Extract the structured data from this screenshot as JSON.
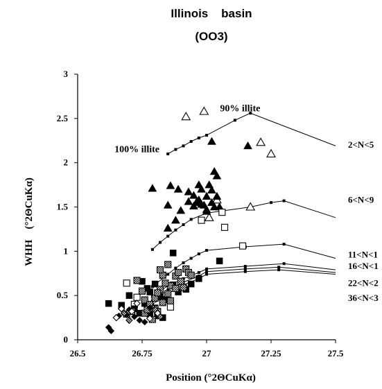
{
  "chart_data": {
    "type": "scatter",
    "title": "Illinois    basin",
    "subtitle": "(OO3)",
    "xlabel": "Position (°2ΘCuKα)",
    "ylabel": "WHH    (°2ΘCuKα)",
    "xlim": [
      26.5,
      27.5
    ],
    "ylim": [
      0,
      3
    ],
    "xticks": [
      26.5,
      26.75,
      27,
      27.25,
      27.5
    ],
    "xtick_labels": [
      "26.5",
      "26.75",
      "27",
      "27.25",
      "27.5"
    ],
    "yticks": [
      0,
      0.5,
      1,
      1.5,
      2,
      2.5,
      3
    ],
    "ytick_labels": [
      "0",
      "0.5",
      "1",
      "1.5",
      "2",
      "2.5",
      "3"
    ],
    "grid": false,
    "annotations": [
      {
        "text": "100% illite",
        "x": 26.73,
        "y": 2.12
      },
      {
        "text": "90% illite",
        "x": 27.13,
        "y": 2.58
      }
    ],
    "curves": [
      {
        "name": "2<N<5",
        "label_y": 2.2,
        "points": [
          [
            26.85,
            2.1
          ],
          [
            26.88,
            2.15
          ],
          [
            26.91,
            2.19
          ],
          [
            26.94,
            2.24
          ],
          [
            26.97,
            2.28
          ],
          [
            27.0,
            2.31
          ],
          [
            27.11,
            2.48
          ],
          [
            27.17,
            2.56
          ],
          [
            27.5,
            2.19
          ]
        ]
      },
      {
        "name": "6<N<9",
        "label_y": 1.58,
        "points": [
          [
            26.79,
            1.02
          ],
          [
            26.82,
            1.1
          ],
          [
            26.85,
            1.17
          ],
          [
            26.88,
            1.24
          ],
          [
            26.91,
            1.3
          ],
          [
            26.94,
            1.36
          ],
          [
            27.0,
            1.43
          ],
          [
            27.17,
            1.5
          ],
          [
            27.25,
            1.55
          ],
          [
            27.3,
            1.57
          ],
          [
            27.5,
            1.38
          ]
        ]
      },
      {
        "name": "11<N<1",
        "label_y": 0.96,
        "points": [
          [
            26.79,
            0.6
          ],
          [
            26.85,
            0.74
          ],
          [
            26.88,
            0.81
          ],
          [
            26.91,
            0.87
          ],
          [
            26.94,
            0.92
          ],
          [
            26.97,
            0.97
          ],
          [
            27.0,
            1.01
          ],
          [
            27.15,
            1.05
          ],
          [
            27.3,
            1.08
          ],
          [
            27.5,
            0.92
          ]
        ]
      },
      {
        "name": "16<N<1",
        "label_y": 0.83,
        "points": [
          [
            26.79,
            0.49
          ],
          [
            26.85,
            0.61
          ],
          [
            26.91,
            0.69
          ],
          [
            26.97,
            0.76
          ],
          [
            27.0,
            0.8
          ],
          [
            27.15,
            0.83
          ],
          [
            27.3,
            0.86
          ],
          [
            27.5,
            0.79
          ]
        ]
      },
      {
        "name": "22<N<2",
        "label_y": 0.64,
        "points": [
          [
            26.79,
            0.44
          ],
          [
            26.85,
            0.56
          ],
          [
            26.91,
            0.65
          ],
          [
            26.97,
            0.72
          ],
          [
            27.0,
            0.77
          ],
          [
            27.15,
            0.8
          ],
          [
            27.28,
            0.82
          ],
          [
            27.5,
            0.76
          ]
        ]
      },
      {
        "name": "36<N<3",
        "label_y": 0.47,
        "points": [
          [
            26.79,
            0.4
          ],
          [
            26.85,
            0.52
          ],
          [
            26.91,
            0.62
          ],
          [
            26.97,
            0.69
          ],
          [
            27.0,
            0.74
          ],
          [
            27.15,
            0.77
          ],
          [
            27.28,
            0.79
          ],
          [
            27.5,
            0.74
          ]
        ]
      }
    ],
    "series": [
      {
        "marker": "triangle-open",
        "points": [
          [
            26.92,
            2.52
          ],
          [
            26.99,
            2.58
          ],
          [
            27.21,
            2.23
          ],
          [
            27.25,
            2.1
          ],
          [
            27.04,
            1.58
          ],
          [
            27.01,
            1.38
          ],
          [
            27.17,
            1.5
          ]
        ]
      },
      {
        "marker": "triangle-filled",
        "points": [
          [
            27.02,
            2.24
          ],
          [
            27.16,
            2.19
          ],
          [
            26.79,
            1.71
          ],
          [
            26.86,
            1.74
          ],
          [
            26.89,
            1.7
          ],
          [
            26.85,
            1.52
          ],
          [
            26.85,
            1.26
          ],
          [
            26.88,
            1.35
          ],
          [
            26.9,
            1.46
          ],
          [
            26.93,
            1.67
          ],
          [
            26.95,
            1.63
          ],
          [
            26.97,
            1.75
          ],
          [
            26.98,
            1.7
          ],
          [
            27.01,
            1.75
          ],
          [
            27.02,
            1.69
          ],
          [
            27.03,
            1.9
          ],
          [
            27.04,
            1.85
          ],
          [
            27.04,
            1.62
          ],
          [
            27.03,
            1.5
          ],
          [
            27.0,
            1.47
          ],
          [
            26.98,
            1.53
          ],
          [
            26.99,
            1.52
          ],
          [
            26.97,
            1.58
          ],
          [
            26.96,
            1.55
          ],
          [
            26.95,
            1.51
          ],
          [
            27.0,
            1.45
          ],
          [
            27.05,
            1.5
          ],
          [
            27.02,
            1.55
          ],
          [
            26.93,
            1.56
          ],
          [
            27.0,
            1.62
          ]
        ]
      },
      {
        "marker": "square-open",
        "points": [
          [
            26.69,
            0.64
          ],
          [
            27.06,
            1.44
          ],
          [
            26.98,
            1.35
          ],
          [
            27.07,
            1.27
          ],
          [
            27.14,
            1.06
          ],
          [
            26.73,
            0.48
          ],
          [
            26.72,
            0.4
          ],
          [
            26.86,
            0.37
          ]
        ]
      },
      {
        "marker": "square-filled",
        "points": [
          [
            26.62,
            0.41
          ],
          [
            26.87,
            0.98
          ],
          [
            27.05,
            0.89
          ],
          [
            26.7,
            0.5
          ],
          [
            26.72,
            0.35
          ],
          [
            26.74,
            0.3
          ],
          [
            26.75,
            0.66
          ],
          [
            26.77,
            0.58
          ],
          [
            26.76,
            0.41
          ],
          [
            26.78,
            0.54
          ],
          [
            26.8,
            0.63
          ],
          [
            26.82,
            0.49
          ],
          [
            26.84,
            0.45
          ],
          [
            26.87,
            0.62
          ],
          [
            26.89,
            0.54
          ],
          [
            26.92,
            0.57
          ],
          [
            26.94,
            0.63
          ],
          [
            26.97,
            0.69
          ],
          [
            26.78,
            0.29
          ],
          [
            26.8,
            0.36
          ],
          [
            26.67,
            0.39
          ],
          [
            26.81,
            0.27
          ],
          [
            26.83,
            0.25
          ]
        ]
      },
      {
        "marker": "square-hatched",
        "points": [
          [
            26.73,
            0.67
          ],
          [
            26.75,
            0.55
          ],
          [
            26.76,
            0.45
          ],
          [
            26.78,
            0.4
          ],
          [
            26.8,
            0.35
          ],
          [
            26.81,
            0.32
          ],
          [
            26.83,
            0.42
          ],
          [
            26.85,
            0.52
          ],
          [
            26.86,
            0.61
          ],
          [
            26.88,
            0.72
          ],
          [
            26.89,
            0.76
          ],
          [
            26.9,
            0.66
          ],
          [
            26.91,
            0.59
          ],
          [
            26.92,
            0.8
          ],
          [
            26.93,
            0.76
          ],
          [
            26.94,
            0.73
          ],
          [
            26.88,
            0.58
          ],
          [
            26.86,
            0.44
          ],
          [
            26.84,
            0.64
          ],
          [
            26.83,
            0.73
          ],
          [
            26.82,
            0.57
          ],
          [
            26.76,
            0.3
          ],
          [
            26.77,
            0.34
          ],
          [
            26.8,
            0.47
          ],
          [
            26.81,
            0.53
          ],
          [
            26.71,
            0.32
          ],
          [
            26.69,
            0.29
          ],
          [
            26.79,
            0.23
          ],
          [
            26.82,
            0.79
          ],
          [
            26.85,
            0.85
          ]
        ]
      },
      {
        "marker": "diamond-filled",
        "points": [
          [
            26.62,
            0.14
          ],
          [
            26.63,
            0.1
          ],
          [
            26.66,
            0.27
          ],
          [
            26.74,
            0.22
          ],
          [
            26.76,
            0.2
          ],
          [
            26.7,
            0.34
          ],
          [
            26.69,
            0.28
          ],
          [
            26.78,
            0.36
          ],
          [
            26.72,
            0.26
          ]
        ]
      },
      {
        "marker": "diamond-open",
        "points": [
          [
            26.65,
            0.25
          ],
          [
            26.67,
            0.35
          ],
          [
            26.71,
            0.32
          ],
          [
            26.73,
            0.41
          ],
          [
            26.81,
            0.3
          ],
          [
            26.78,
            0.24
          ]
        ]
      },
      {
        "marker": "diamond-hatched",
        "points": [
          [
            26.8,
            0.34
          ],
          [
            26.82,
            0.26
          ],
          [
            26.68,
            0.3
          ],
          [
            26.7,
            0.22
          ]
        ]
      }
    ]
  }
}
